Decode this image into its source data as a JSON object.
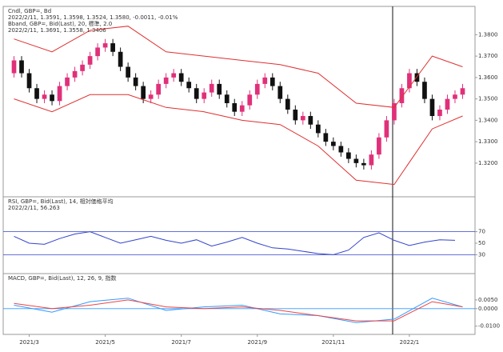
{
  "chart_data": [
    {
      "type": "candlestick",
      "title": "Cndl, GBP=, Bd",
      "subtitle": "2022/2/11, 1.3591, 1.3598, 1.3524, 1.3580, -0.0011, -0.01%",
      "open": [
        1.362,
        1.368,
        1.362,
        1.355,
        1.35,
        1.352,
        1.349,
        1.356,
        1.36,
        1.363,
        1.366,
        1.37,
        1.374,
        1.376,
        1.372,
        1.365,
        1.36,
        1.356,
        1.35,
        1.352,
        1.357,
        1.36,
        1.362,
        1.358,
        1.355,
        1.35,
        1.353,
        1.357,
        1.352,
        1.348,
        1.344,
        1.347,
        1.352,
        1.357,
        1.36,
        1.356,
        1.35,
        1.345,
        1.34,
        1.342,
        1.338,
        1.334,
        1.33,
        1.328,
        1.325,
        1.322,
        1.32,
        1.319,
        1.324,
        1.332,
        1.34,
        1.348,
        1.355,
        1.362,
        1.358,
        1.35,
        1.342,
        1.345,
        1.35,
        1.352
      ],
      "high": [
        1.37,
        1.37,
        1.364,
        1.357,
        1.354,
        1.354,
        1.358,
        1.362,
        1.365,
        1.368,
        1.372,
        1.376,
        1.378,
        1.378,
        1.374,
        1.367,
        1.362,
        1.358,
        1.354,
        1.359,
        1.362,
        1.364,
        1.364,
        1.36,
        1.357,
        1.355,
        1.359,
        1.359,
        1.354,
        1.35,
        1.349,
        1.354,
        1.359,
        1.362,
        1.362,
        1.358,
        1.352,
        1.347,
        1.344,
        1.344,
        1.34,
        1.336,
        1.332,
        1.33,
        1.327,
        1.324,
        1.322,
        1.326,
        1.334,
        1.342,
        1.35,
        1.357,
        1.364,
        1.364,
        1.36,
        1.352,
        1.347,
        1.352,
        1.354,
        1.357
      ],
      "low": [
        1.36,
        1.36,
        1.353,
        1.348,
        1.348,
        1.347,
        1.347,
        1.354,
        1.358,
        1.361,
        1.364,
        1.368,
        1.372,
        1.37,
        1.363,
        1.358,
        1.354,
        1.348,
        1.348,
        1.35,
        1.355,
        1.358,
        1.356,
        1.353,
        1.348,
        1.348,
        1.351,
        1.35,
        1.346,
        1.342,
        1.342,
        1.345,
        1.35,
        1.355,
        1.354,
        1.348,
        1.343,
        1.338,
        1.338,
        1.336,
        1.332,
        1.328,
        1.326,
        1.323,
        1.32,
        1.318,
        1.317,
        1.317,
        1.322,
        1.33,
        1.338,
        1.346,
        1.353,
        1.356,
        1.348,
        1.34,
        1.34,
        1.343,
        1.348,
        1.35
      ],
      "close": [
        1.368,
        1.362,
        1.355,
        1.35,
        1.352,
        1.349,
        1.356,
        1.36,
        1.363,
        1.366,
        1.37,
        1.374,
        1.376,
        1.372,
        1.365,
        1.36,
        1.356,
        1.35,
        1.352,
        1.357,
        1.36,
        1.362,
        1.358,
        1.355,
        1.35,
        1.353,
        1.357,
        1.352,
        1.348,
        1.344,
        1.347,
        1.352,
        1.357,
        1.36,
        1.356,
        1.35,
        1.345,
        1.34,
        1.342,
        1.338,
        1.334,
        1.33,
        1.328,
        1.325,
        1.322,
        1.32,
        1.319,
        1.324,
        1.332,
        1.34,
        1.348,
        1.355,
        1.362,
        1.358,
        1.35,
        1.342,
        1.345,
        1.35,
        1.352,
        1.355
      ],
      "up_color": "#e0307a",
      "down_color": "#111111",
      "annotations": [
        "2022/2/11, 1.3691, 1.3558, 1.3406"
      ],
      "series": [
        {
          "name": "Bband, GBP=, Bid(Last), 20, 標準, 2.0",
          "color": "#e03030",
          "x": [
            0,
            5,
            10,
            15,
            20,
            25,
            30,
            35,
            40,
            45,
            50,
            55,
            59
          ],
          "values": [
            1.378,
            1.372,
            1.382,
            1.384,
            1.372,
            1.37,
            1.368,
            1.366,
            1.362,
            1.348,
            1.346,
            1.37,
            1.365
          ]
        },
        {
          "color": "#e03030",
          "x": [
            0,
            5,
            10,
            15,
            20,
            25,
            30,
            35,
            40,
            45,
            50,
            55,
            59
          ],
          "values": [
            1.35,
            1.344,
            1.352,
            1.352,
            1.346,
            1.344,
            1.34,
            1.338,
            1.328,
            1.312,
            1.31,
            1.336,
            1.342
          ]
        }
      ],
      "xlim": [
        -1,
        60
      ],
      "ylim": [
        1.305,
        1.385
      ],
      "yticks": [
        {
          "value": 1.32,
          "label": "1.3200"
        },
        {
          "value": 1.33,
          "label": "1.3300"
        },
        {
          "value": 1.34,
          "label": "1.3400"
        },
        {
          "value": 1.35,
          "label": "1.3500"
        },
        {
          "value": 1.36,
          "label": "1.3600"
        },
        {
          "value": 1.37,
          "label": "1.3700"
        },
        {
          "value": 1.38,
          "label": "1.3800"
        }
      ]
    },
    {
      "type": "line",
      "title": "RSI, GBP=, Bid(Last), 14, 相対価格平均",
      "subtitle": "2022/2/11, 56.263",
      "series": [
        {
          "color": "#3344cc",
          "x": [
            0,
            2,
            4,
            6,
            8,
            10,
            12,
            14,
            16,
            18,
            20,
            22,
            24,
            26,
            28,
            30,
            32,
            34,
            36,
            38,
            40,
            42,
            44,
            46,
            48,
            50,
            52,
            54,
            56,
            58
          ],
          "values": [
            62,
            50,
            48,
            58,
            66,
            70,
            60,
            50,
            56,
            62,
            55,
            50,
            56,
            45,
            52,
            60,
            50,
            42,
            40,
            36,
            32,
            30,
            38,
            60,
            68,
            55,
            46,
            52,
            56,
            55
          ]
        }
      ],
      "levels": [
        30,
        70
      ],
      "level_color": "#3344cc",
      "xlim": [
        -1,
        60
      ],
      "ylim": [
        0,
        100
      ],
      "yticks": [
        30,
        50,
        70
      ]
    },
    {
      "type": "line",
      "title": "MACD, GBP=, Bid(Last), 12, 26, 9, 指数",
      "series": [
        {
          "color": "#3399ff",
          "x": [
            0,
            5,
            10,
            15,
            20,
            25,
            30,
            35,
            40,
            45,
            50,
            55,
            59
          ],
          "values": [
            0.002,
            -0.002,
            0.004,
            0.006,
            -0.001,
            0.001,
            0.002,
            -0.003,
            -0.004,
            -0.008,
            -0.006,
            0.006,
            0.001
          ]
        },
        {
          "color": "#ee4444",
          "x": [
            0,
            5,
            10,
            15,
            20,
            25,
            30,
            35,
            40,
            45,
            50,
            55,
            59
          ],
          "values": [
            0.003,
            0.0,
            0.002,
            0.005,
            0.001,
            0.0,
            0.001,
            -0.001,
            -0.004,
            -0.007,
            -0.007,
            0.004,
            0.001
          ]
        }
      ],
      "levels": [
        0
      ],
      "level_color": "#3399ff",
      "xlim": [
        -1,
        60
      ],
      "ylim": [
        -0.012,
        0.01
      ],
      "yticks": [
        {
          "value": -0.01,
          "label": "-0.0100"
        },
        {
          "value": 0,
          "label": "0.0000"
        },
        {
          "value": 0.005,
          "label": "0.0050"
        }
      ],
      "xticks": [
        {
          "value": 2,
          "label": "2021/3"
        },
        {
          "value": 12,
          "label": "2021/5"
        },
        {
          "value": 22,
          "label": "2021/7"
        },
        {
          "value": 32,
          "label": "2021/9"
        },
        {
          "value": 42,
          "label": "2021/11"
        },
        {
          "value": 52,
          "label": "2022/1"
        }
      ]
    }
  ]
}
